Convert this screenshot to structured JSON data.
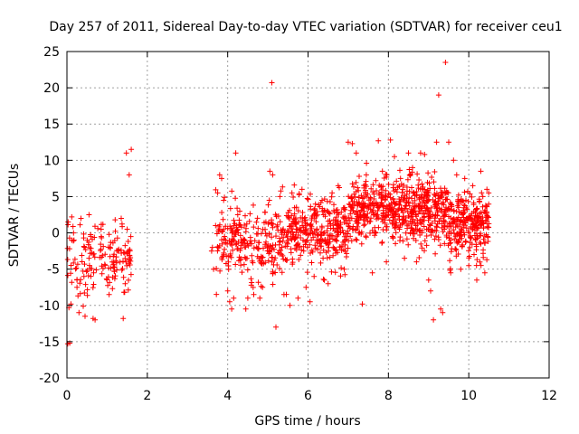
{
  "chart_data": {
    "type": "scatter",
    "title": "Day 257 of 2011, Sidereal Day-to-day VTEC variation (SDTVAR) for receiver ceu1",
    "xlabel": "GPS time / hours",
    "ylabel": "SDTVAR / TECUs",
    "xlim": [
      0,
      12
    ],
    "ylim": [
      -20,
      25
    ],
    "xticks": [
      0,
      2,
      4,
      6,
      8,
      10,
      12
    ],
    "yticks": [
      -20,
      -15,
      -10,
      -5,
      0,
      5,
      10,
      15,
      20,
      25
    ],
    "grid": true,
    "legend": "none",
    "marker": "+",
    "colors": {
      "series": "#ff0000",
      "grid": "#a0a0a0",
      "axis": "#000000",
      "background": "#ffffff"
    },
    "series": [
      {
        "name": "SDTVAR",
        "color": "#ff0000",
        "points": [
          [
            0.02,
            -15.3
          ],
          [
            0.07,
            -15.2
          ],
          [
            0.05,
            -10.3
          ],
          [
            0.1,
            -9.8
          ],
          [
            0.12,
            2.2
          ],
          [
            0.03,
            1.5
          ],
          [
            0.3,
            -11.0
          ],
          [
            0.45,
            -11.5
          ],
          [
            0.7,
            -12.0
          ],
          [
            0.65,
            -11.8
          ],
          [
            0.55,
            2.5
          ],
          [
            0.35,
            2.0
          ],
          [
            0.85,
            0.5
          ],
          [
            1.05,
            -8.5
          ],
          [
            1.2,
            1.8
          ],
          [
            1.35,
            2.0
          ],
          [
            1.4,
            -11.8
          ],
          [
            1.48,
            11.0
          ],
          [
            1.55,
            8.0
          ],
          [
            1.6,
            11.5
          ],
          [
            1.45,
            -7.0
          ],
          [
            1.5,
            0.5
          ],
          [
            3.6,
            -2.5
          ],
          [
            3.62,
            -2.0
          ],
          [
            3.65,
            -5.0
          ],
          [
            3.7,
            1.0
          ],
          [
            3.75,
            5.5
          ],
          [
            3.8,
            8.0
          ],
          [
            3.85,
            7.5
          ],
          [
            3.9,
            4.5
          ],
          [
            3.95,
            -1.0
          ],
          [
            4.0,
            -8.0
          ],
          [
            4.05,
            -9.5
          ],
          [
            4.1,
            -10.5
          ],
          [
            4.15,
            -9.0
          ],
          [
            4.2,
            11.0
          ],
          [
            4.25,
            2.5
          ],
          [
            4.3,
            3.0
          ],
          [
            4.45,
            -10.5
          ],
          [
            4.5,
            -9.0
          ],
          [
            4.65,
            -8.5
          ],
          [
            4.8,
            -9.0
          ],
          [
            4.95,
            1.5
          ],
          [
            5.05,
            8.5
          ],
          [
            5.12,
            8.0
          ],
          [
            5.1,
            20.7
          ],
          [
            5.2,
            -13.0
          ],
          [
            5.3,
            5.0
          ],
          [
            5.4,
            -8.5
          ],
          [
            5.55,
            -10.0
          ],
          [
            5.6,
            5.5
          ],
          [
            5.75,
            -9.0
          ],
          [
            5.85,
            6.0
          ],
          [
            5.95,
            -7.5
          ],
          [
            6.05,
            -9.5
          ],
          [
            6.15,
            -6.0
          ],
          [
            6.35,
            4.5
          ],
          [
            6.5,
            -7.0
          ],
          [
            6.6,
            5.5
          ],
          [
            6.75,
            6.5
          ],
          [
            6.9,
            -5.0
          ],
          [
            7.0,
            12.5
          ],
          [
            7.1,
            12.3
          ],
          [
            7.2,
            11.0
          ],
          [
            7.35,
            -9.8
          ],
          [
            7.45,
            8.0
          ],
          [
            7.6,
            -5.5
          ],
          [
            7.75,
            12.7
          ],
          [
            7.85,
            8.5
          ],
          [
            7.95,
            -4.0
          ],
          [
            8.05,
            12.8
          ],
          [
            8.15,
            10.5
          ],
          [
            8.3,
            7.5
          ],
          [
            8.4,
            -3.5
          ],
          [
            8.5,
            11.0
          ],
          [
            8.6,
            9.0
          ],
          [
            8.7,
            -4.0
          ],
          [
            8.8,
            11.0
          ],
          [
            8.9,
            10.8
          ],
          [
            9.0,
            -6.5
          ],
          [
            9.05,
            -8.0
          ],
          [
            9.12,
            -12.0
          ],
          [
            9.2,
            12.5
          ],
          [
            9.25,
            19.0
          ],
          [
            9.3,
            -10.5
          ],
          [
            9.35,
            -11.0
          ],
          [
            9.42,
            23.5
          ],
          [
            9.5,
            12.5
          ],
          [
            9.55,
            -5.5
          ],
          [
            9.62,
            10.0
          ],
          [
            9.7,
            8.0
          ],
          [
            9.8,
            -5.0
          ],
          [
            9.9,
            7.5
          ],
          [
            10.0,
            -4.5
          ],
          [
            10.1,
            6.5
          ],
          [
            10.2,
            -6.5
          ],
          [
            10.3,
            8.5
          ],
          [
            10.35,
            5.0
          ],
          [
            10.4,
            -5.5
          ],
          [
            10.45,
            6.0
          ]
        ]
      }
    ],
    "cloud_bands": [
      {
        "x_start": 0.0,
        "x_end": 1.6,
        "y_mean": -3.5,
        "y_spread": 3.0,
        "density": 160
      },
      {
        "x_start": 3.7,
        "x_end": 5.5,
        "y_mean": -1.0,
        "y_spread": 3.4,
        "density": 260
      },
      {
        "x_start": 5.5,
        "x_end": 7.0,
        "y_mean": 0.0,
        "y_spread": 3.0,
        "density": 300
      },
      {
        "x_start": 7.0,
        "x_end": 9.5,
        "y_mean": 3.0,
        "y_spread": 3.0,
        "density": 600
      },
      {
        "x_start": 9.5,
        "x_end": 10.5,
        "y_mean": 1.0,
        "y_spread": 2.8,
        "density": 260
      }
    ]
  }
}
